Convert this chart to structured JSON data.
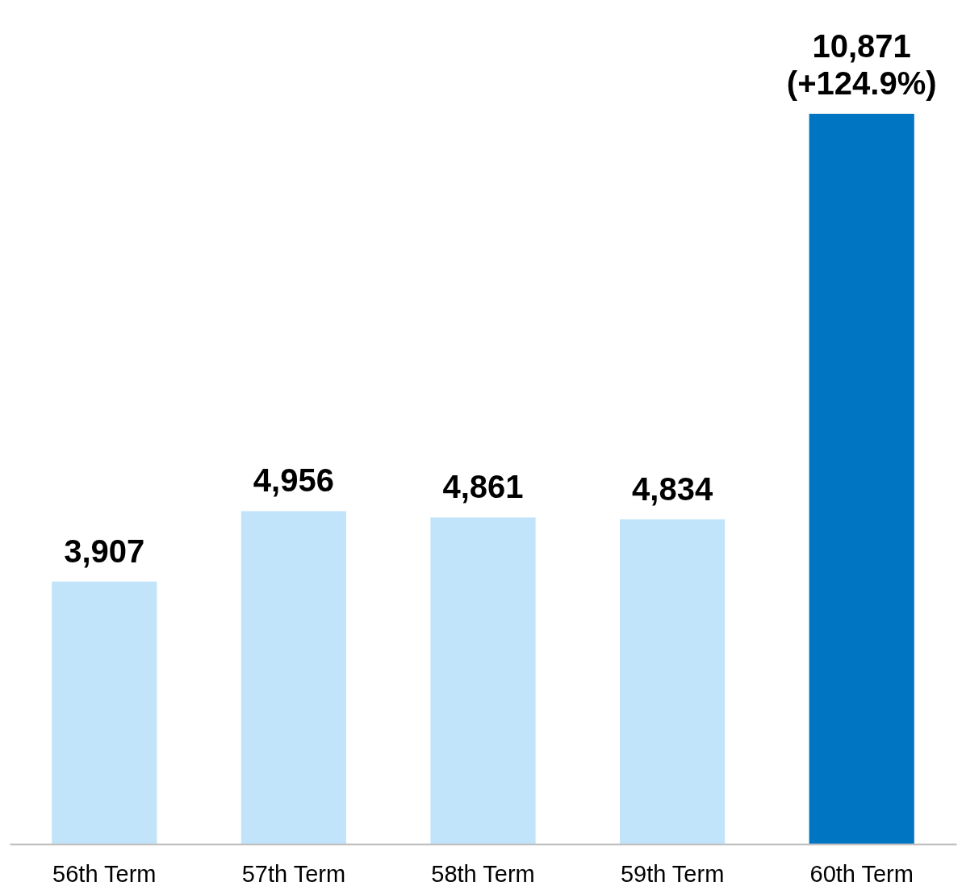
{
  "chart_data": {
    "type": "bar",
    "categories": [
      "56th Term",
      "57th Term",
      "58th Term",
      "59th Term",
      "60th Term"
    ],
    "values": [
      3907,
      4956,
      4861,
      4834,
      10871
    ],
    "colors": [
      "#c1e4fb",
      "#c1e4fb",
      "#c1e4fb",
      "#c1e4fb",
      "#0075c2"
    ],
    "value_labels": [
      "3,907",
      "4,956",
      "4,861",
      "4,834",
      "10,871\n(+124.9%)"
    ]
  }
}
